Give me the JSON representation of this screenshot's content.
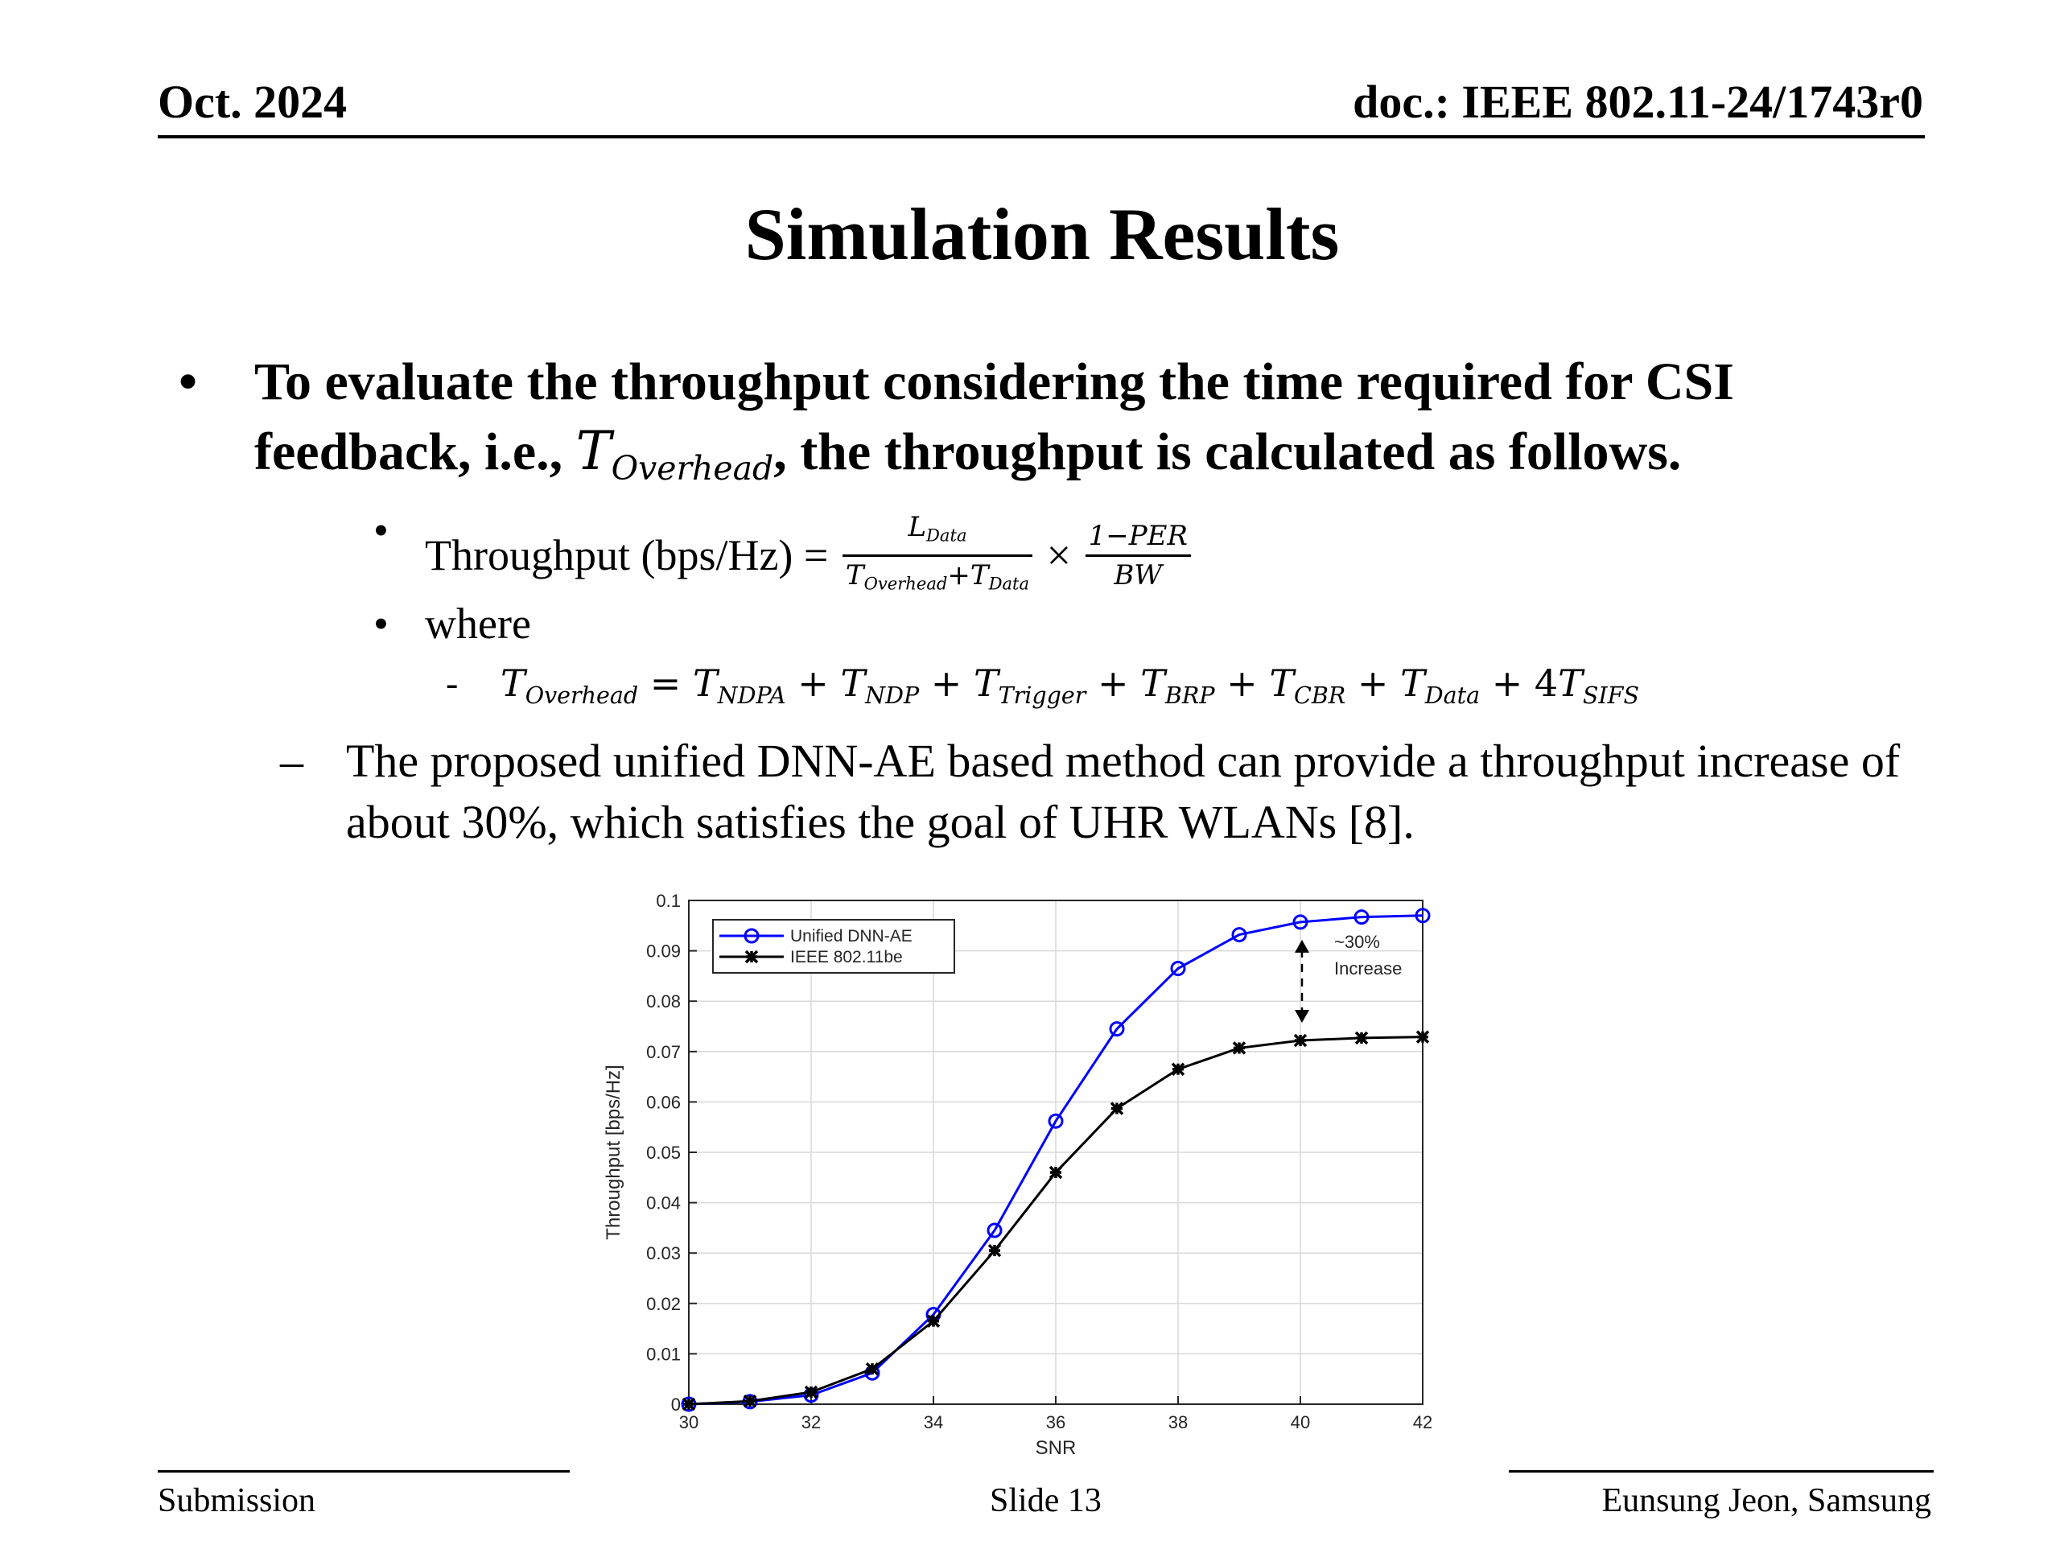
{
  "header": {
    "date": "Oct. 2024",
    "doc": "doc.: IEEE 802.11-24/1743r0"
  },
  "title": "Simulation Results",
  "bullets": {
    "marker": "•",
    "dash_marker": "–",
    "b1_text_a": "To evaluate the throughput considering the time required for CSI feedback, i.e., ",
    "b1_math_T": "T",
    "b1_math_sub": "Overhead",
    "b1_text_b": ", the throughput is calculated as follows.",
    "b2_label": "Throughput (bps/Hz) =",
    "b2_frac1_num": "L",
    "b2_frac1_num_sub": "Data",
    "b2_frac1_den": "T",
    "b2_frac1_den_sub1": "Overhead",
    "b2_frac1_den_plus": "+T",
    "b2_frac1_den_sub2": "Data",
    "b2_times": "×",
    "b2_frac2_num": "1−PER",
    "b2_frac2_den": "BW",
    "b3_text": "where",
    "eq_dash": "-",
    "eq": {
      "t": "T",
      "overhead": "Overhead",
      "eq": " = ",
      "ndpa": "NDPA",
      "ndp": "NDP",
      "trigger": "Trigger",
      "brp": "BRP",
      "cbr": "CBR",
      "data": "Data",
      "plus": " + ",
      "four": "4",
      "sifs": "SIFS"
    },
    "b4_text": "The proposed unified DNN-AE based method can provide a throughput increase of about 30%, which satisfies the goal of UHR WLANs [8]."
  },
  "chart_data": {
    "type": "line",
    "title": "",
    "xlabel": "SNR",
    "ylabel": "Throughput [bps/Hz]",
    "xlim": [
      30,
      42
    ],
    "ylim": [
      0,
      0.1
    ],
    "xticks": [
      "30",
      "32",
      "34",
      "36",
      "38",
      "40",
      "42"
    ],
    "yticks": [
      "0",
      "0.01",
      "0.02",
      "0.03",
      "0.04",
      "0.05",
      "0.06",
      "0.07",
      "0.08",
      "0.09",
      "0.1"
    ],
    "grid": true,
    "legend_position": "top-left",
    "x": [
      30,
      31,
      32,
      33,
      34,
      35,
      36,
      37,
      38,
      39,
      40,
      41,
      42
    ],
    "series": [
      {
        "name": "Unified DNN-AE",
        "color": "#0000ff",
        "marker": "circle",
        "values": [
          0.0,
          0.0005,
          0.0018,
          0.0062,
          0.0178,
          0.0345,
          0.0562,
          0.0745,
          0.0865,
          0.0932,
          0.0957,
          0.0967,
          0.097
        ]
      },
      {
        "name": "IEEE 802.11be",
        "color": "#000000",
        "marker": "asterisk",
        "values": [
          0.0,
          0.0006,
          0.0024,
          0.007,
          0.0165,
          0.0305,
          0.046,
          0.0587,
          0.0665,
          0.0707,
          0.0722,
          0.0727,
          0.0729
        ]
      }
    ],
    "annotation": {
      "line1": "~30%",
      "line2": "Increase",
      "x": 40,
      "y_top": 0.0957,
      "y_bottom": 0.0722
    }
  },
  "footer": {
    "left": "Submission",
    "center": "Slide 13",
    "right": "Eunsung Jeon, Samsung"
  }
}
